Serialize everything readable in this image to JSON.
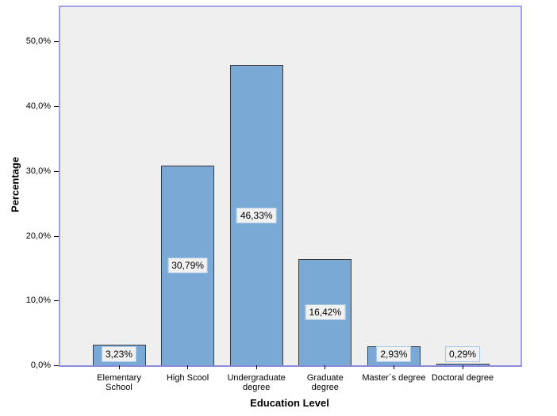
{
  "chart_data": {
    "type": "bar",
    "categories": [
      "Elementary School",
      "High Scool",
      "Undergraduate degree",
      "Graduate degree",
      "Master´s degree",
      "Doctoral degree"
    ],
    "category_labels": [
      "Elementary\nSchool",
      "High Scool",
      "Undergraduate\ndegree",
      "Graduate\ndegree",
      "Master´s degree",
      "Doctoral degree"
    ],
    "values": [
      3.23,
      30.79,
      46.33,
      16.42,
      2.93,
      0.29
    ],
    "value_labels": [
      "3,23%",
      "30,79%",
      "46,33%",
      "16,42%",
      "2,93%",
      "0,29%"
    ],
    "xlabel": "Education Level",
    "ylabel": "Percentage",
    "y_ticks": {
      "values": [
        0,
        10,
        20,
        30,
        40,
        50
      ],
      "labels": [
        "0,0%",
        "10,0%",
        "20,0%",
        "30,0%",
        "40,0%",
        "50,0%"
      ]
    },
    "ylim": [
      0,
      55.3
    ],
    "grid": false,
    "legend": null,
    "colors": {
      "bar_fill": "#7aa9d6",
      "bar_border": "#3b3b3b",
      "plot_bg": "#efefef",
      "frame_border": "#a2a2e2",
      "axis_line": "#8b8bdc",
      "label_box_bg": "#f1f1f1",
      "label_box_border": "#a6c8e8",
      "text": "#000000",
      "page_bg": "#ffffff"
    }
  }
}
